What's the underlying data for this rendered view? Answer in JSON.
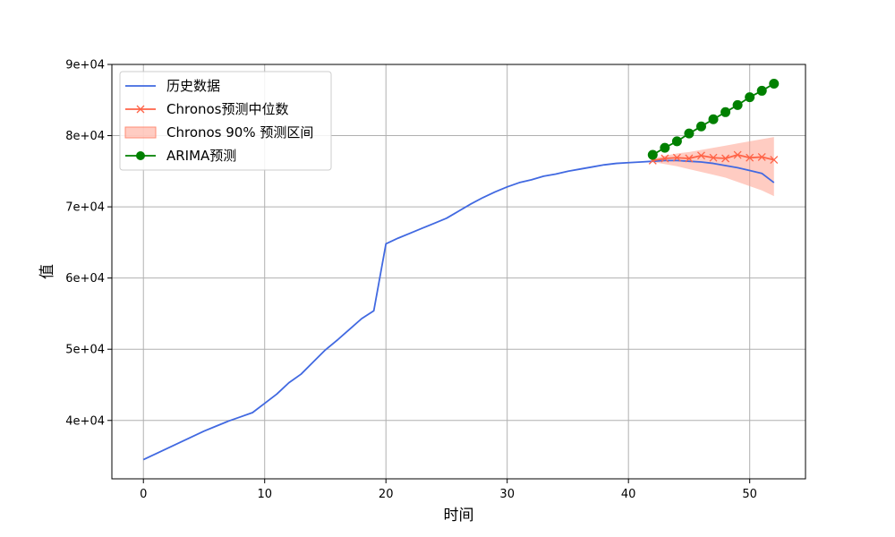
{
  "chart_data": {
    "type": "line",
    "xlabel": "时间",
    "ylabel": "值",
    "xlim": [
      -2.6,
      54.6
    ],
    "ylim": [
      31800,
      90000
    ],
    "xticks": [
      0,
      10,
      20,
      30,
      40,
      50
    ],
    "yticks": [
      40000,
      50000,
      60000,
      70000,
      80000,
      90000
    ],
    "ytick_labels": [
      "4e+04",
      "5e+04",
      "6e+04",
      "7e+04",
      "8e+04",
      "9e+04"
    ],
    "grid": true,
    "legend_position": "upper-left",
    "series": [
      {
        "name": "历史数据",
        "color": "#4169e1",
        "marker": "none",
        "x": [
          0,
          1,
          2,
          3,
          4,
          5,
          6,
          7,
          8,
          9,
          10,
          11,
          12,
          13,
          14,
          15,
          16,
          17,
          18,
          19,
          20,
          21,
          22,
          23,
          24,
          25,
          26,
          27,
          28,
          29,
          30,
          31,
          32,
          33,
          34,
          35,
          36,
          37,
          38,
          39,
          40,
          41,
          42,
          43,
          44,
          45,
          46,
          47,
          48,
          49,
          50,
          51,
          52
        ],
        "y": [
          34500,
          35300,
          36100,
          36900,
          37700,
          38500,
          39200,
          39900,
          40500,
          41100,
          42400,
          43700,
          45300,
          46500,
          48200,
          49900,
          51300,
          52800,
          54300,
          55400,
          64800,
          65600,
          66300,
          67000,
          67700,
          68400,
          69400,
          70400,
          71300,
          72100,
          72800,
          73400,
          73800,
          74300,
          74600,
          75000,
          75300,
          75600,
          75900,
          76100,
          76200,
          76300,
          76400,
          76500,
          76500,
          76400,
          76300,
          76100,
          75800,
          75500,
          75100,
          74700,
          73400
        ]
      },
      {
        "name": "Chronos预测中位数",
        "color": "#ff6347",
        "marker": "x",
        "x": [
          42,
          43,
          44,
          45,
          46,
          47,
          48,
          49,
          50,
          51,
          52
        ],
        "y": [
          76500,
          76800,
          76900,
          76800,
          77200,
          76900,
          76800,
          77300,
          76900,
          77000,
          76600
        ]
      },
      {
        "name": "ARIMA预测",
        "color": "#008000",
        "marker": "o",
        "x": [
          42,
          43,
          44,
          45,
          46,
          47,
          48,
          49,
          50,
          51,
          52
        ],
        "y": [
          77300,
          78300,
          79200,
          80300,
          81300,
          82300,
          83300,
          84300,
          85400,
          86300,
          87300
        ]
      }
    ],
    "band": {
      "name": "Chronos 90% 预测区间",
      "color": "#ffa28f",
      "x": [
        42,
        43,
        44,
        45,
        46,
        47,
        48,
        49,
        50,
        51,
        52
      ],
      "lower": [
        76300,
        76000,
        75700,
        75300,
        74900,
        74500,
        74100,
        73500,
        72900,
        72300,
        71500
      ],
      "upper": [
        76800,
        77200,
        77500,
        77700,
        78000,
        78300,
        78600,
        78900,
        79200,
        79500,
        79800
      ]
    }
  }
}
